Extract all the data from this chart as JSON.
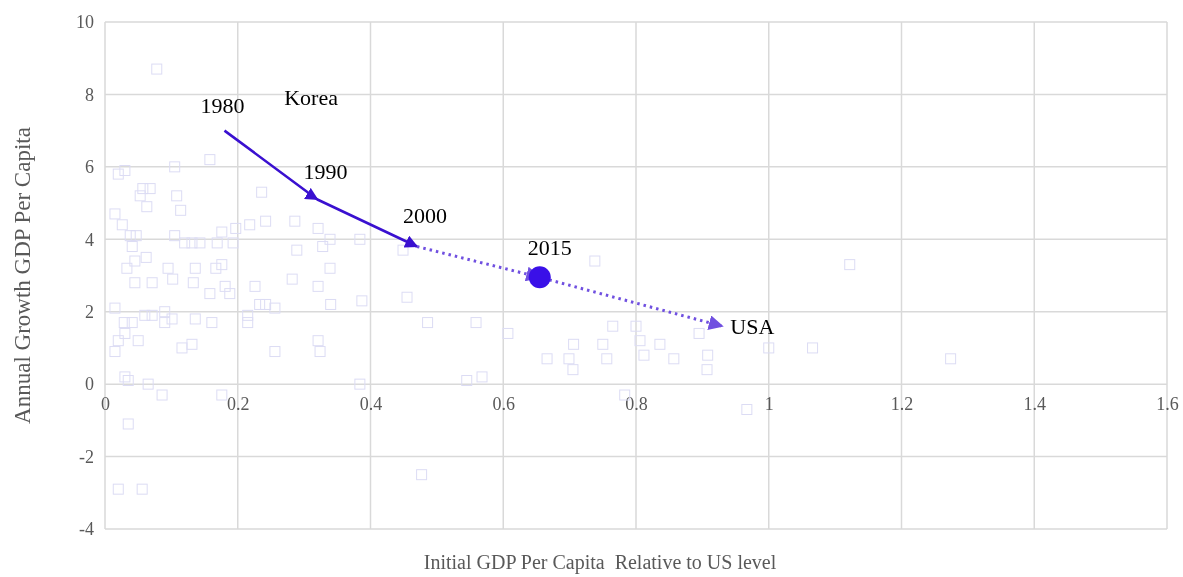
{
  "chart_data": {
    "type": "scatter",
    "xlabel": "Initial GDP Per Capita  Relative to US level",
    "ylabel": "Annual Growth GDP Per Capita",
    "xlim": [
      0,
      1.6
    ],
    "xticks": [
      0,
      0.2,
      0.4,
      0.6,
      0.8,
      1,
      1.2,
      1.4,
      1.6
    ],
    "ylim": [
      -4,
      10
    ],
    "yticks": [
      -4,
      -2,
      0,
      2,
      4,
      6,
      8,
      10
    ],
    "grid": true,
    "series": [
      {
        "marker": "square",
        "color": "#dcdcf4",
        "x": [
          0.078,
          0.158,
          0.02,
          0.03,
          0.057,
          0.068,
          0.053,
          0.063,
          0.105,
          0.108,
          0.114,
          0.236,
          0.015,
          0.026,
          0.038,
          0.047,
          0.041,
          0.062,
          0.105,
          0.12,
          0.131,
          0.143,
          0.169,
          0.176,
          0.197,
          0.218,
          0.242,
          0.286,
          0.321,
          0.339,
          0.328,
          0.339,
          0.289,
          0.193,
          0.045,
          0.033,
          0.095,
          0.136,
          0.167,
          0.176,
          0.045,
          0.071,
          0.102,
          0.133,
          0.181,
          0.188,
          0.226,
          0.282,
          0.321,
          0.158,
          0.015,
          0.029,
          0.041,
          0.06,
          0.071,
          0.09,
          0.101,
          0.136,
          0.161,
          0.215,
          0.233,
          0.242,
          0.256,
          0.02,
          0.03,
          0.05,
          0.09,
          0.116,
          0.131,
          0.215,
          0.256,
          0.321,
          0.324,
          0.015,
          0.03,
          0.035,
          0.065,
          0.086,
          0.176,
          0.035,
          0.02,
          0.056,
          0.384,
          0.387,
          0.34,
          0.455,
          0.559,
          0.486,
          0.607,
          0.545,
          0.568,
          0.477,
          0.449,
          0.384,
          0.738,
          0.765,
          0.8,
          0.806,
          0.706,
          0.75,
          0.836,
          0.699,
          0.756,
          0.812,
          0.857,
          0.895,
          0.908,
          0.907,
          0.666,
          0.705,
          0.783,
          0.967,
          1.0,
          1.066,
          1.122,
          1.274
        ],
        "values": [
          8.7,
          6.2,
          5.8,
          5.9,
          5.4,
          5.4,
          5.2,
          4.9,
          6.0,
          5.2,
          4.8,
          5.3,
          4.7,
          4.4,
          4.1,
          4.1,
          3.8,
          3.5,
          4.1,
          3.9,
          3.9,
          3.9,
          3.9,
          4.2,
          4.3,
          4.4,
          4.5,
          4.5,
          4.3,
          4.0,
          3.8,
          3.2,
          3.7,
          3.9,
          3.4,
          3.2,
          3.2,
          3.2,
          3.2,
          3.3,
          2.8,
          2.8,
          2.9,
          2.8,
          2.7,
          2.5,
          2.7,
          2.9,
          2.7,
          2.5,
          2.1,
          1.7,
          1.7,
          1.9,
          1.9,
          2.0,
          1.8,
          1.8,
          1.7,
          1.9,
          2.2,
          2.2,
          2.1,
          1.2,
          1.4,
          1.2,
          1.7,
          1.0,
          1.1,
          1.7,
          0.9,
          1.2,
          0.9,
          0.9,
          0.2,
          0.1,
          0.0,
          -0.3,
          -0.3,
          -1.1,
          -2.9,
          -2.9,
          0.0,
          2.3,
          2.2,
          2.4,
          1.7,
          1.7,
          1.4,
          0.1,
          0.2,
          -2.5,
          3.7,
          4.0,
          3.4,
          1.6,
          1.6,
          1.2,
          1.1,
          1.1,
          1.1,
          0.7,
          0.7,
          0.8,
          0.7,
          1.4,
          0.8,
          0.4,
          0.7,
          0.4,
          -0.3,
          -0.7,
          1.0,
          1.0,
          3.3,
          0.7
        ]
      },
      {
        "type": "line",
        "line_style": "solid",
        "color": "#3a10d0",
        "x": [
          0.18,
          0.32,
          0.47
        ],
        "values": [
          7.0,
          5.1,
          3.8
        ]
      },
      {
        "type": "line",
        "line_style": "dotted",
        "color": "#7050e0",
        "x": [
          0.47,
          0.655,
          0.93
        ],
        "values": [
          3.8,
          2.95,
          1.6
        ]
      },
      {
        "marker": "circle",
        "color": "#3a10e8",
        "x": [
          0.655
        ],
        "values": [
          2.95
        ]
      }
    ],
    "annotations": [
      {
        "text": "1980",
        "x": 0.18,
        "y": 7.0
      },
      "Korea",
      {
        "text": "1990",
        "x": 0.32,
        "y": 5.1
      },
      {
        "text": "2000",
        "x": 0.47,
        "y": 3.8
      },
      {
        "text": "2015",
        "x": 0.655,
        "y": 2.95
      },
      {
        "text": "USA",
        "x": 0.93,
        "y": 1.6
      }
    ]
  }
}
